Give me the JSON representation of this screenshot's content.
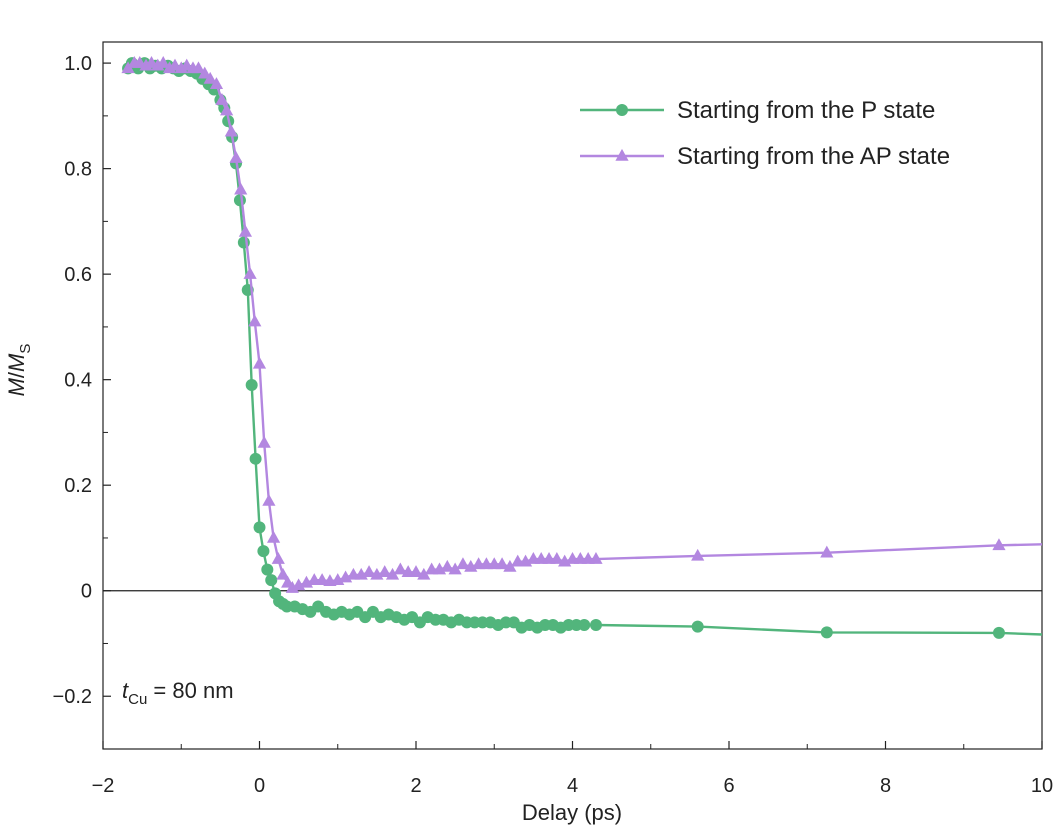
{
  "chart_data": {
    "type": "line",
    "xlabel": "Delay (ps)",
    "ylabel_main": "M",
    "ylabel_sep": "/",
    "ylabel_denom": "M",
    "ylabel_sub": "S",
    "xlim": [
      -2,
      10
    ],
    "ylim": [
      -0.3,
      1.04
    ],
    "x_ticks": [
      -2,
      0,
      2,
      4,
      6,
      8,
      10
    ],
    "x_tick_labels": [
      "−2",
      "0",
      "2",
      "4",
      "6",
      "8",
      "10"
    ],
    "y_ticks": [
      -0.2,
      0,
      0.2,
      0.4,
      0.6,
      0.8,
      1.0
    ],
    "y_tick_labels": [
      "−0.2",
      "0",
      "0.2",
      "0.4",
      "0.6",
      "0.8",
      "1.0"
    ],
    "zero_line": true,
    "legend_position": "top-right",
    "annotation": {
      "symbol": "t",
      "subscript": "Cu",
      "text": " = 80 nm"
    },
    "series": [
      {
        "name": "Starting from the P state",
        "color": "#52b57c",
        "marker": "circle",
        "x": [
          -1.68,
          -1.63,
          -1.55,
          -1.47,
          -1.4,
          -1.33,
          -1.25,
          -1.17,
          -1.1,
          -1.03,
          -0.95,
          -0.88,
          -0.8,
          -0.73,
          -0.65,
          -0.58,
          -0.5,
          -0.45,
          -0.4,
          -0.35,
          -0.3,
          -0.25,
          -0.2,
          -0.15,
          -0.1,
          -0.05,
          0.0,
          0.05,
          0.1,
          0.15,
          0.2,
          0.25,
          0.3,
          0.35,
          0.45,
          0.55,
          0.65,
          0.75,
          0.85,
          0.95,
          1.05,
          1.15,
          1.25,
          1.35,
          1.45,
          1.55,
          1.65,
          1.75,
          1.85,
          1.95,
          2.05,
          2.15,
          2.25,
          2.35,
          2.45,
          2.55,
          2.65,
          2.75,
          2.85,
          2.95,
          3.05,
          3.15,
          3.25,
          3.35,
          3.45,
          3.55,
          3.65,
          3.75,
          3.85,
          3.95,
          4.05,
          4.15,
          4.3,
          5.6,
          7.25,
          9.45,
          10.0
        ],
        "y": [
          0.99,
          1.0,
          0.99,
          1.0,
          0.99,
          0.995,
          0.99,
          0.995,
          0.99,
          0.985,
          0.99,
          0.985,
          0.98,
          0.97,
          0.96,
          0.95,
          0.93,
          0.915,
          0.89,
          0.86,
          0.81,
          0.74,
          0.66,
          0.57,
          0.39,
          0.25,
          0.12,
          0.075,
          0.04,
          0.02,
          -0.005,
          -0.02,
          -0.025,
          -0.03,
          -0.03,
          -0.035,
          -0.04,
          -0.03,
          -0.04,
          -0.045,
          -0.04,
          -0.045,
          -0.04,
          -0.05,
          -0.04,
          -0.05,
          -0.045,
          -0.05,
          -0.055,
          -0.05,
          -0.06,
          -0.05,
          -0.055,
          -0.055,
          -0.06,
          -0.055,
          -0.06,
          -0.06,
          -0.06,
          -0.06,
          -0.065,
          -0.06,
          -0.06,
          -0.07,
          -0.065,
          -0.07,
          -0.065,
          -0.065,
          -0.07,
          -0.065,
          -0.065,
          -0.065,
          -0.065,
          -0.068,
          -0.079,
          -0.08,
          -0.083
        ]
      },
      {
        "name": "Starting from the AP state",
        "color": "#b387e0",
        "marker": "triangle",
        "x": [
          -1.68,
          -1.6,
          -1.53,
          -1.45,
          -1.38,
          -1.3,
          -1.23,
          -1.15,
          -1.08,
          -1.0,
          -0.93,
          -0.85,
          -0.78,
          -0.7,
          -0.63,
          -0.55,
          -0.48,
          -0.42,
          -0.36,
          -0.3,
          -0.24,
          -0.18,
          -0.12,
          -0.06,
          0.0,
          0.06,
          0.12,
          0.18,
          0.24,
          0.3,
          0.36,
          0.42,
          0.5,
          0.6,
          0.7,
          0.8,
          0.9,
          1.0,
          1.1,
          1.2,
          1.3,
          1.4,
          1.5,
          1.6,
          1.7,
          1.8,
          1.9,
          2.0,
          2.1,
          2.2,
          2.3,
          2.4,
          2.5,
          2.6,
          2.7,
          2.8,
          2.9,
          3.0,
          3.1,
          3.2,
          3.3,
          3.4,
          3.5,
          3.6,
          3.7,
          3.8,
          3.9,
          4.0,
          4.1,
          4.2,
          4.3,
          5.6,
          7.25,
          9.45,
          10.0
        ],
        "y": [
          0.99,
          1.0,
          1.0,
          0.995,
          1.0,
          0.995,
          1.0,
          0.99,
          0.995,
          0.99,
          0.995,
          0.99,
          0.99,
          0.98,
          0.97,
          0.96,
          0.93,
          0.91,
          0.87,
          0.82,
          0.76,
          0.68,
          0.6,
          0.51,
          0.43,
          0.28,
          0.17,
          0.1,
          0.06,
          0.03,
          0.015,
          0.005,
          0.01,
          0.015,
          0.02,
          0.02,
          0.018,
          0.02,
          0.025,
          0.03,
          0.03,
          0.035,
          0.03,
          0.035,
          0.03,
          0.04,
          0.035,
          0.035,
          0.03,
          0.04,
          0.04,
          0.045,
          0.04,
          0.05,
          0.045,
          0.05,
          0.05,
          0.05,
          0.05,
          0.045,
          0.055,
          0.055,
          0.06,
          0.06,
          0.06,
          0.06,
          0.055,
          0.06,
          0.06,
          0.06,
          0.06,
          0.066,
          0.072,
          0.086,
          0.088
        ]
      }
    ]
  }
}
